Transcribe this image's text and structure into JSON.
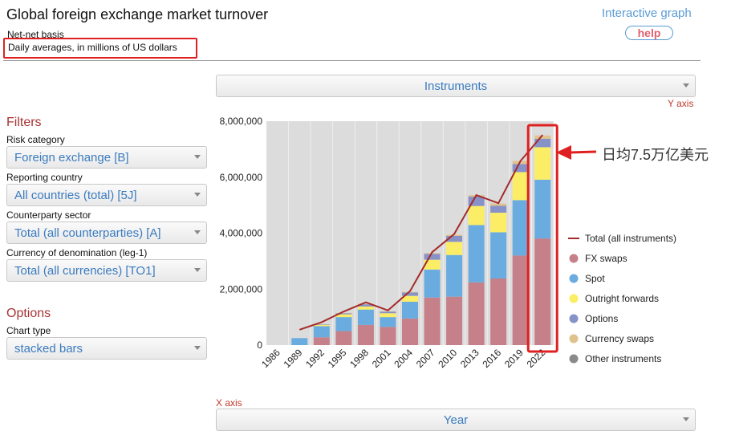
{
  "header": {
    "title": "Global foreign exchange market turnover",
    "basis": "Net-net basis",
    "units": "Daily averages, in millions of US dollars",
    "interactive_link": "Interactive graph",
    "help_label": "help"
  },
  "selectors": {
    "top": "Instruments",
    "y_axis_label": "Y axis",
    "bottom": "Year",
    "x_axis_label": "X axis"
  },
  "filters": {
    "heading": "Filters",
    "items": [
      {
        "label": "Risk category",
        "value": "Foreign exchange [B]"
      },
      {
        "label": "Reporting country",
        "value": "All countries (total) [5J]"
      },
      {
        "label": "Counterparty sector",
        "value": "Total (all counterparties) [A]"
      },
      {
        "label": "Currency of denomination (leg-1)",
        "value": "Total (all currencies) [TO1]"
      }
    ]
  },
  "options": {
    "heading": "Options",
    "chart_type_label": "Chart type",
    "chart_type_value": "stacked bars"
  },
  "annotation": {
    "text": "日均7.5万亿美元"
  },
  "colors": {
    "fx_swaps": "#c58089",
    "spot": "#6aace0",
    "outright_forwards": "#fbee66",
    "options": "#8792c8",
    "currency_swaps": "#e0c28e",
    "other": "#8a8a8a",
    "total_line": "#a52a2a",
    "plot_bg": "#dcdcdc",
    "highlight": "#e02020"
  },
  "chart_data": {
    "type": "bar",
    "stacked": true,
    "categories": [
      "1986",
      "1989",
      "1992",
      "1995",
      "1998",
      "2001",
      "2004",
      "2007",
      "2010",
      "2013",
      "2016",
      "2019",
      "2022"
    ],
    "series": [
      {
        "name": "FX swaps",
        "values": [
          0,
          0,
          280000,
          500000,
          720000,
          650000,
          950000,
          1700000,
          1730000,
          2240000,
          2380000,
          3200000,
          3810000
        ]
      },
      {
        "name": "Spot",
        "values": [
          0,
          250000,
          400000,
          500000,
          550000,
          350000,
          600000,
          1000000,
          1490000,
          2050000,
          1650000,
          1980000,
          2100000
        ]
      },
      {
        "name": "Outright forwards",
        "values": [
          0,
          0,
          40000,
          100000,
          110000,
          140000,
          210000,
          350000,
          470000,
          680000,
          700000,
          1000000,
          1160000
        ]
      },
      {
        "name": "Options",
        "values": [
          0,
          0,
          20000,
          40000,
          80000,
          60000,
          120000,
          210000,
          210000,
          340000,
          250000,
          290000,
          300000
        ]
      },
      {
        "name": "Currency swaps",
        "values": [
          0,
          0,
          10000,
          10000,
          10000,
          10000,
          20000,
          30000,
          40000,
          50000,
          80000,
          110000,
          120000
        ]
      },
      {
        "name": "Other instruments",
        "values": [
          0,
          0,
          0,
          0,
          0,
          0,
          0,
          0,
          0,
          0,
          0,
          0,
          0
        ]
      }
    ],
    "line": {
      "name": "Total (all instruments)",
      "values": [
        null,
        550000,
        820000,
        1200000,
        1530000,
        1240000,
        1930000,
        3320000,
        3970000,
        5360000,
        5070000,
        6580000,
        7510000
      ]
    },
    "y_ticks": [
      "8,000,000",
      "6,000,000",
      "4,000,000",
      "2,000,000",
      "0"
    ],
    "ylim": [
      0,
      8000000
    ],
    "highlight_category": "2022",
    "legend_position": "right"
  }
}
